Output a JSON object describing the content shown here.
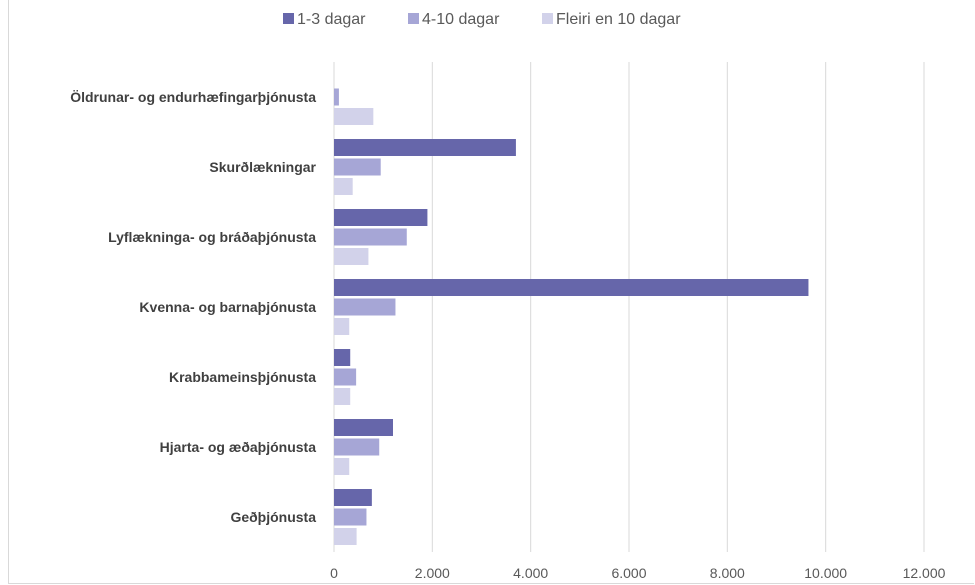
{
  "chart_data": {
    "type": "bar",
    "orientation": "horizontal",
    "categories": [
      "Öldrunar- og endurhæfingarþjónusta",
      "Skurðlækningar",
      "Lyflækninga- og bráðaþjónusta",
      "Kvenna- og barnaþjónusta",
      "Krabbameinsþjónusta",
      "Hjarta- og æðaþjónusta",
      "Geðþjónusta"
    ],
    "series": [
      {
        "name": "1-3 dagar",
        "color": "#6666aa",
        "values": [
          0,
          3700,
          1900,
          9650,
          330,
          1200,
          770
        ]
      },
      {
        "name": "4-10 dagar",
        "color": "#a6a6d6",
        "values": [
          100,
          950,
          1480,
          1250,
          450,
          920,
          660
        ]
      },
      {
        "name": "Fleiri en 10 dagar",
        "color": "#d2d2ea",
        "values": [
          800,
          380,
          700,
          310,
          330,
          310,
          460
        ]
      }
    ],
    "x_ticks": [
      "0",
      "2.000",
      "4.000",
      "6.000",
      "8.000",
      "10.000",
      "12.000"
    ],
    "xlim": [
      0,
      12000
    ],
    "grid": true,
    "legend_position": "top"
  }
}
